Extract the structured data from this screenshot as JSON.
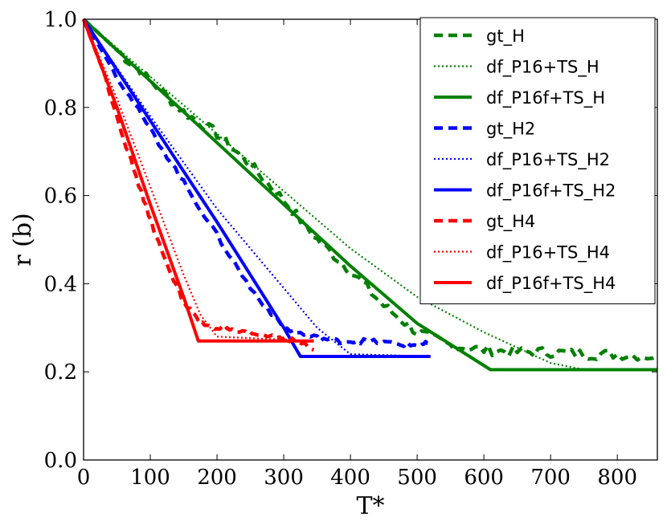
{
  "chart_data": {
    "type": "line",
    "title": "",
    "xlabel": "T*",
    "ylabel": "r (b)",
    "xlim": [
      0,
      860
    ],
    "ylim": [
      0.0,
      1.0
    ],
    "xticks": [
      "0",
      "100",
      "200",
      "300",
      "400",
      "500",
      "600",
      "700",
      "800"
    ],
    "yticks": [
      "0.0",
      "0.2",
      "0.4",
      "0.6",
      "0.8",
      "1.0"
    ],
    "legend_position": "top-right",
    "series": [
      {
        "name": "gt_H",
        "color": "#008000",
        "style": "dashed",
        "noise": 0.012,
        "x": [
          0,
          50,
          100,
          150,
          200,
          250,
          300,
          350,
          400,
          450,
          500,
          550,
          600,
          650,
          700,
          750,
          800,
          860
        ],
        "y": [
          1.0,
          0.93,
          0.86,
          0.79,
          0.74,
          0.67,
          0.59,
          0.5,
          0.43,
          0.35,
          0.29,
          0.26,
          0.25,
          0.245,
          0.245,
          0.24,
          0.24,
          0.235
        ]
      },
      {
        "name": "df_P16+TS_H",
        "color": "#008000",
        "style": "dotted",
        "x": [
          0,
          100,
          200,
          300,
          400,
          500,
          600,
          700,
          750,
          860
        ],
        "y": [
          1.0,
          0.87,
          0.74,
          0.61,
          0.48,
          0.37,
          0.29,
          0.22,
          0.205,
          0.205
        ]
      },
      {
        "name": "df_P16f+TS_H",
        "color": "#008000",
        "style": "solid",
        "x": [
          0,
          100,
          200,
          300,
          400,
          500,
          610,
          860
        ],
        "y": [
          1.0,
          0.86,
          0.72,
          0.58,
          0.44,
          0.31,
          0.205,
          0.205
        ]
      },
      {
        "name": "gt_H2",
        "color": "#0000ff",
        "style": "dashed",
        "noise": 0.006,
        "x": [
          0,
          50,
          100,
          150,
          200,
          250,
          300,
          340,
          380,
          420,
          460,
          500,
          520
        ],
        "y": [
          1.0,
          0.87,
          0.75,
          0.63,
          0.51,
          0.39,
          0.3,
          0.28,
          0.27,
          0.27,
          0.265,
          0.26,
          0.265
        ]
      },
      {
        "name": "df_P16+TS_H2",
        "color": "#0000ff",
        "style": "dotted",
        "x": [
          0,
          100,
          200,
          300,
          350,
          400,
          520
        ],
        "y": [
          1.0,
          0.78,
          0.57,
          0.39,
          0.3,
          0.24,
          0.235
        ]
      },
      {
        "name": "df_P16f+TS_H2",
        "color": "#0000ff",
        "style": "solid",
        "x": [
          0,
          100,
          200,
          300,
          325,
          520
        ],
        "y": [
          1.0,
          0.77,
          0.54,
          0.3,
          0.235,
          0.235
        ]
      },
      {
        "name": "gt_H4",
        "color": "#ff0000",
        "style": "dashed",
        "noise": 0.005,
        "x": [
          0,
          30,
          60,
          90,
          120,
          150,
          175,
          200,
          230,
          260,
          290,
          320,
          345
        ],
        "y": [
          1.0,
          0.88,
          0.73,
          0.59,
          0.46,
          0.36,
          0.31,
          0.3,
          0.29,
          0.285,
          0.28,
          0.27,
          0.25
        ]
      },
      {
        "name": "df_P16+TS_H4",
        "color": "#ff0000",
        "style": "dotted",
        "x": [
          0,
          50,
          100,
          150,
          175,
          200,
          345
        ],
        "y": [
          1.0,
          0.82,
          0.62,
          0.42,
          0.33,
          0.28,
          0.27
        ]
      },
      {
        "name": "df_P16f+TS_H4",
        "color": "#ff0000",
        "style": "solid",
        "x": [
          0,
          50,
          100,
          150,
          172,
          345
        ],
        "y": [
          1.0,
          0.8,
          0.58,
          0.37,
          0.27,
          0.27
        ]
      }
    ]
  }
}
